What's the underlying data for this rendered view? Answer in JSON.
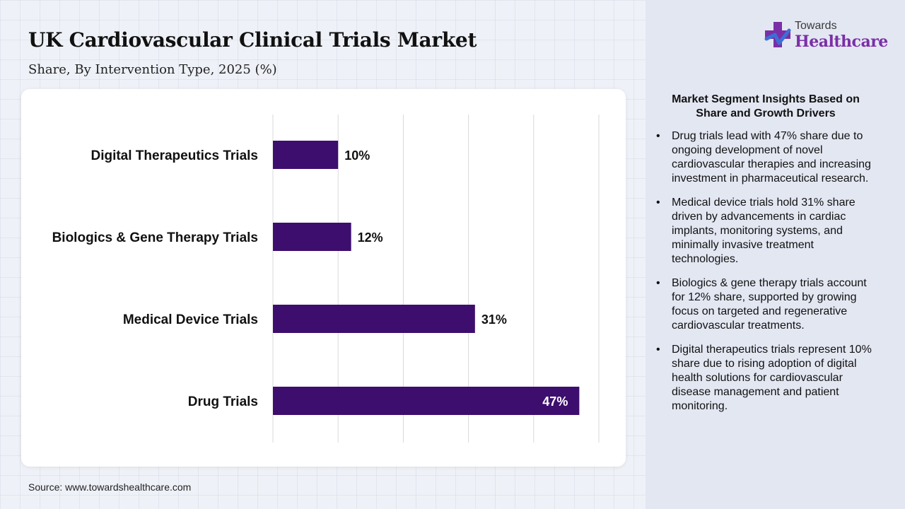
{
  "header": {
    "title": "UK Cardiovascular Clinical Trials Market",
    "subtitle": "Share, By Intervention Type, 2025 (%)"
  },
  "logo": {
    "top_text": "Towards",
    "main_text": "Healthcare",
    "icon": "cross-logo-icon"
  },
  "source": "Source: www.towardshealthcare.com",
  "colors": {
    "bar": "#3d0e6e",
    "grid": "#d9d9d9",
    "logo_purple": "#7b2fa6",
    "logo_blue": "#3d6fd6"
  },
  "insights": {
    "title": "Market Segment Insights Based on Share and Growth Drivers",
    "items": [
      "Drug trials lead with 47% share due to ongoing development of novel cardiovascular therapies and increasing investment in pharmaceutical research.",
      "Medical device trials hold 31% share driven by advancements in cardiac implants, monitoring systems, and minimally invasive treatment technologies.",
      "Biologics & gene therapy trials account for 12% share, supported by growing focus on targeted and regenerative cardiovascular treatments.",
      "Digital therapeutics trials represent 10% share due to rising adoption of digital health solutions for cardiovascular disease management and patient monitoring."
    ]
  },
  "chart_data": {
    "type": "bar",
    "orientation": "horizontal",
    "categories": [
      "Digital Therapeutics Trials",
      "Biologics & Gene Therapy Trials",
      "Medical Device Trials",
      "Drug Trials"
    ],
    "values": [
      10,
      12,
      31,
      47
    ],
    "value_labels": [
      "10%",
      "12%",
      "31%",
      "47%"
    ],
    "xlim": [
      0,
      50
    ],
    "grid": true,
    "legend": "none"
  }
}
